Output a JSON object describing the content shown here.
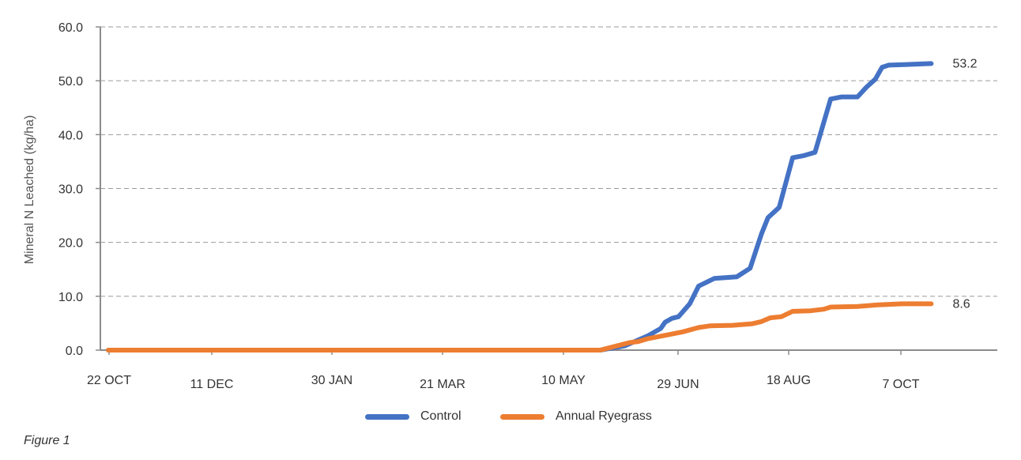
{
  "chart_data": {
    "type": "line",
    "ylabel": "Mineral N Leached (kg/ha)",
    "xlabel": "",
    "ylim": [
      0,
      60
    ],
    "y_ticks": [
      "0.0",
      "10.0",
      "20.0",
      "30.0",
      "40.0",
      "50.0",
      "60.0"
    ],
    "x_ticks": [
      "22 OCT",
      "11 DEC",
      "30 JAN",
      "21 MAR",
      "10 MAY",
      "29 JUN",
      "18 AUG",
      "7 OCT"
    ],
    "grid": "horizontal dashed",
    "legend_position": "bottom",
    "series": [
      {
        "name": "Control",
        "color": "#4472C4",
        "end_label": "53.2",
        "points": [
          [
            "22 OCT",
            0.0
          ],
          [
            "30 MAY",
            0.0
          ],
          [
            "10 JUN",
            0.8
          ],
          [
            "20 JUN",
            2.6
          ],
          [
            "26 JUN",
            4.0
          ],
          [
            "28 JUN",
            5.2
          ],
          [
            "1 JUL",
            5.9
          ],
          [
            "4 JUL",
            6.2
          ],
          [
            "9 JUL",
            8.6
          ],
          [
            "13 JUL",
            11.9
          ],
          [
            "20 JUL",
            13.3
          ],
          [
            "30 JUL",
            13.6
          ],
          [
            "5 AUG",
            15.2
          ],
          [
            "10 AUG",
            21.5
          ],
          [
            "13 AUG",
            24.6
          ],
          [
            "18 AUG",
            26.5
          ],
          [
            "24 AUG",
            35.7
          ],
          [
            "29 AUG",
            36.1
          ],
          [
            "3 SEP",
            36.7
          ],
          [
            "10 SEP",
            46.6
          ],
          [
            "15 SEP",
            47.0
          ],
          [
            "22 SEP",
            47.0
          ],
          [
            "26 SEP",
            48.8
          ],
          [
            "30 SEP",
            50.3
          ],
          [
            "3 OCT",
            52.5
          ],
          [
            "6 OCT",
            52.9
          ],
          [
            "13 OCT",
            53.0
          ],
          [
            "25 OCT",
            53.2
          ]
        ]
      },
      {
        "name": "Annual Ryegrass",
        "color": "#ED7D31",
        "end_label": "8.6",
        "points": [
          [
            "22 OCT",
            0.0
          ],
          [
            "30 MAY",
            0.0
          ],
          [
            "12 JUN",
            1.4
          ],
          [
            "16 JUN",
            1.6
          ],
          [
            "20 JUN",
            2.1
          ],
          [
            "30 JUN",
            2.9
          ],
          [
            "6 JUL",
            3.4
          ],
          [
            "13 JUL",
            4.2
          ],
          [
            "18 JUL",
            4.5
          ],
          [
            "28 JUL",
            4.6
          ],
          [
            "6 AUG",
            4.9
          ],
          [
            "10 AUG",
            5.3
          ],
          [
            "14 AUG",
            6.0
          ],
          [
            "19 AUG",
            6.2
          ],
          [
            "24 AUG",
            7.2
          ],
          [
            "1 SEP",
            7.3
          ],
          [
            "7 SEP",
            7.6
          ],
          [
            "10 SEP",
            8.0
          ],
          [
            "22 SEP",
            8.1
          ],
          [
            "1 OCT",
            8.4
          ],
          [
            "12 OCT",
            8.6
          ],
          [
            "25 OCT",
            8.6
          ]
        ]
      }
    ]
  },
  "caption": "Figure 1"
}
